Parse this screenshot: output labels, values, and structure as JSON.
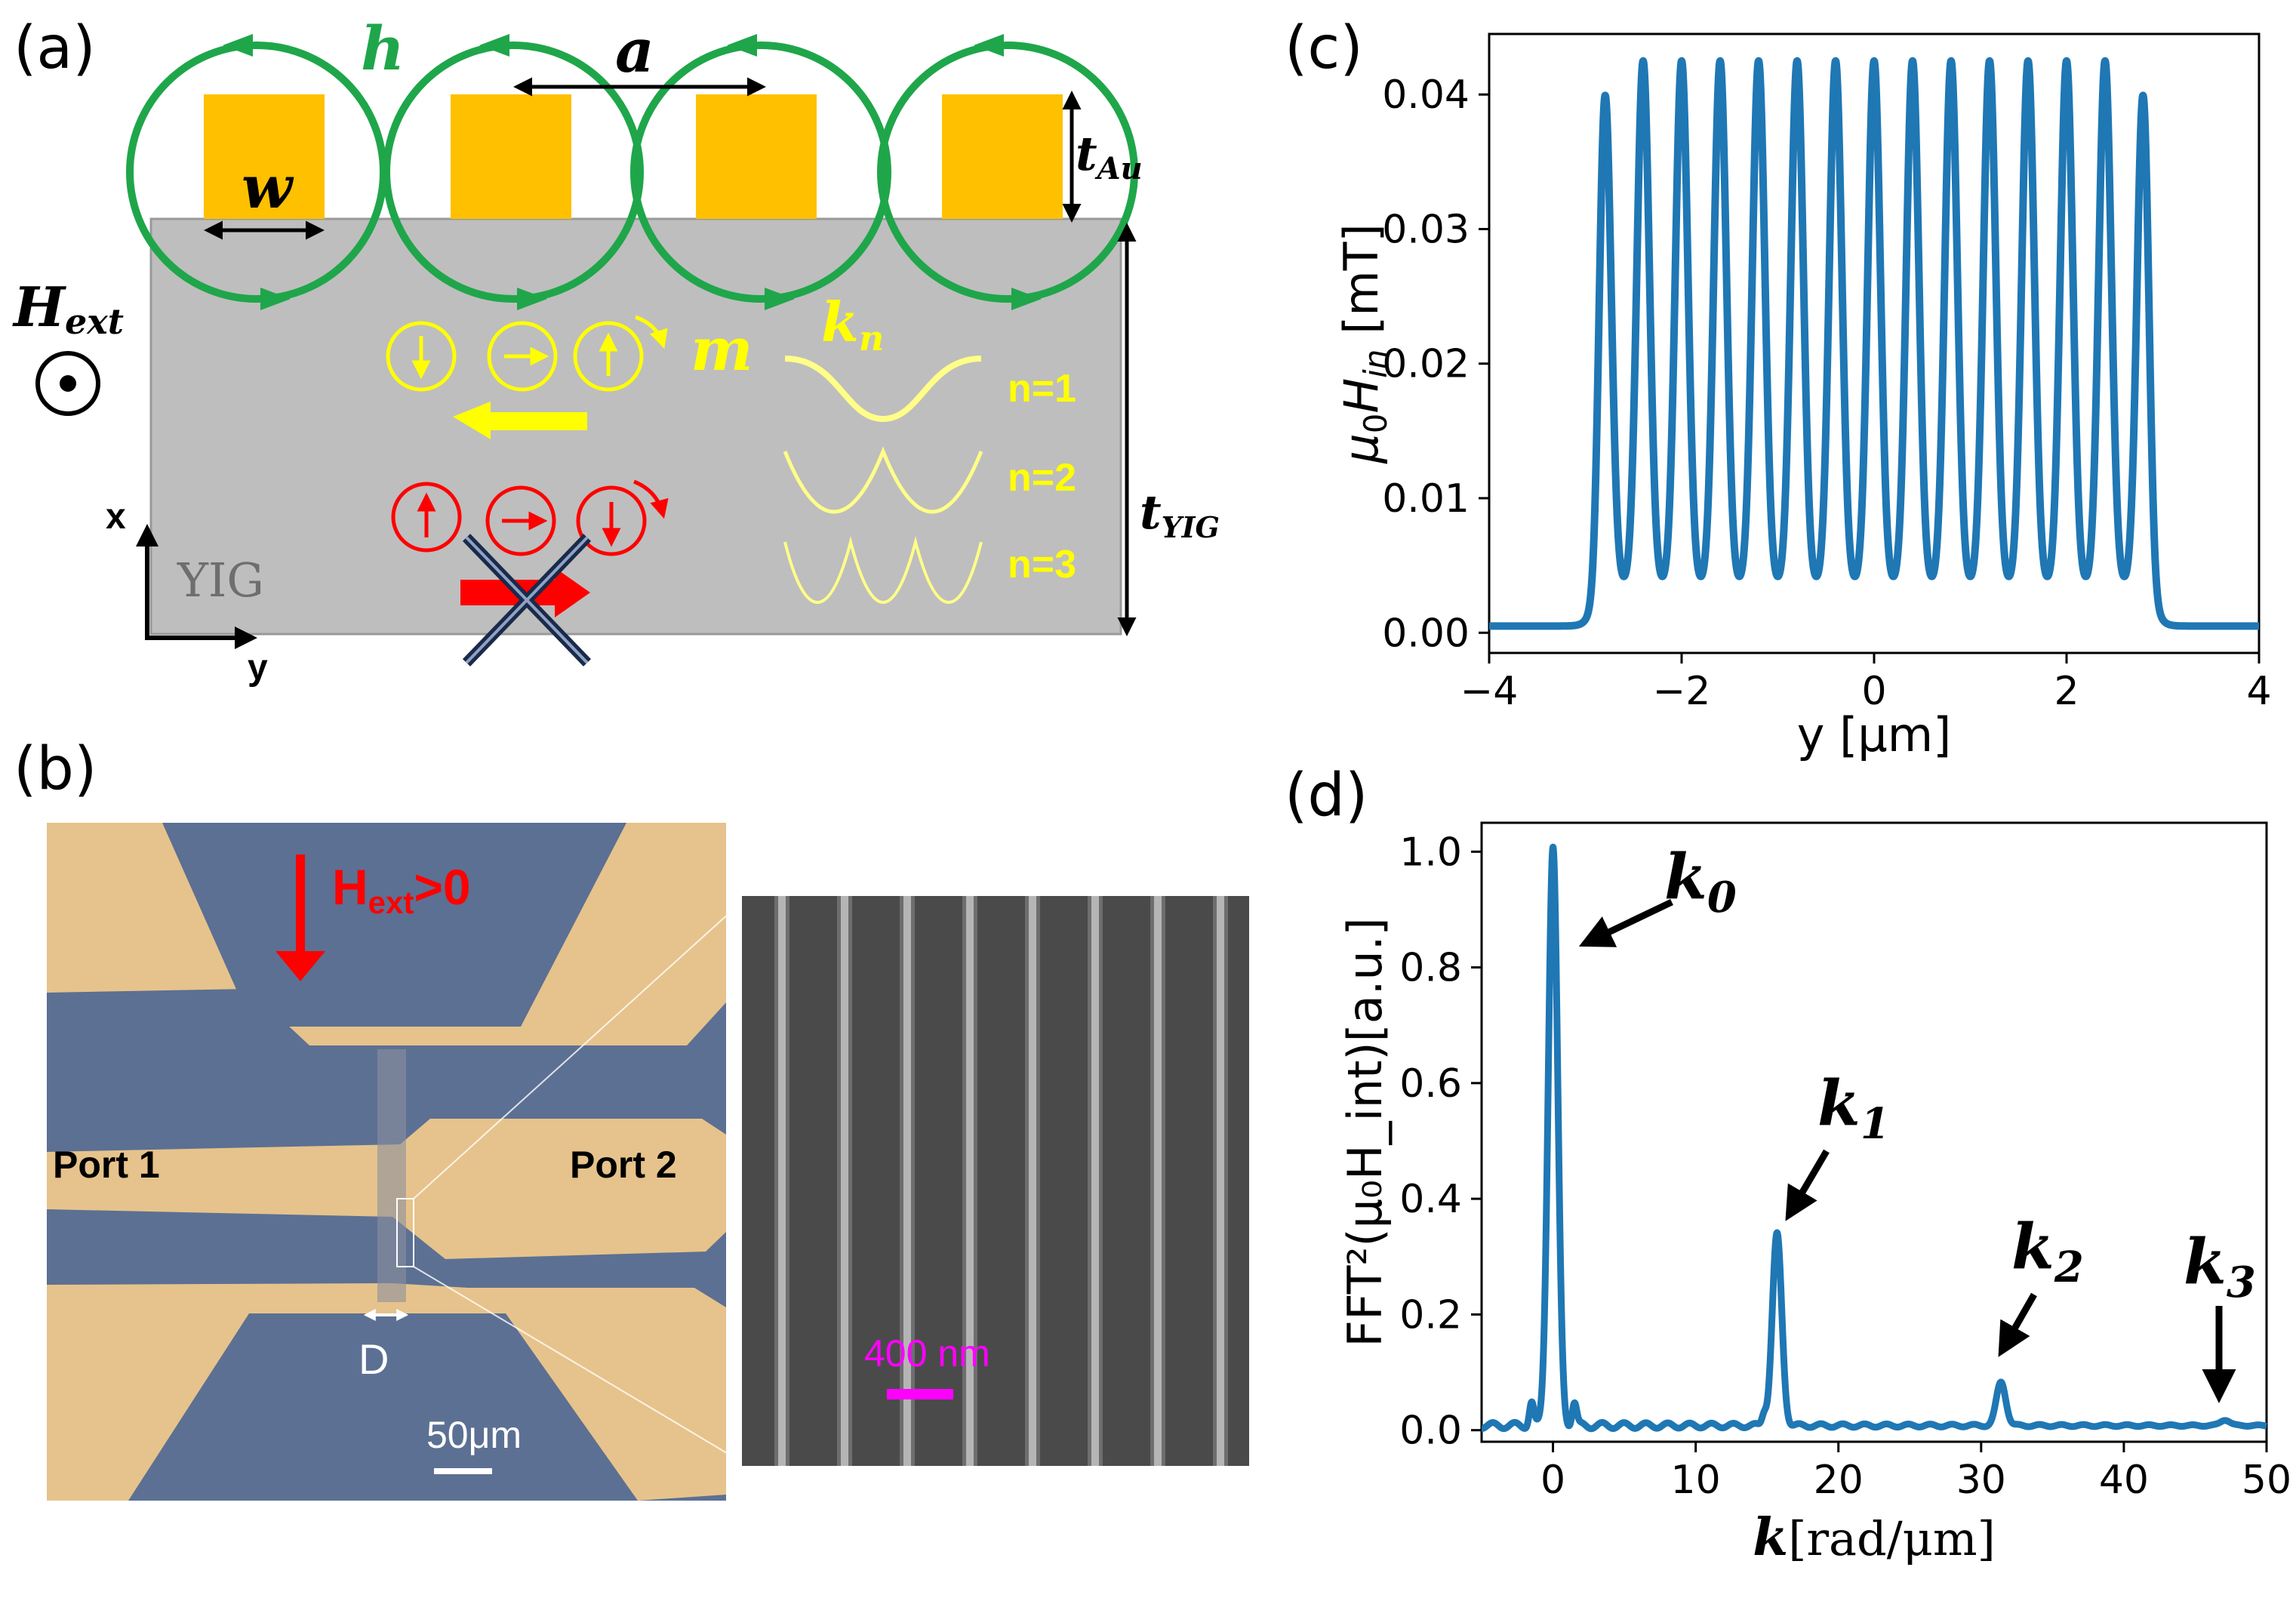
{
  "panels": {
    "a": {
      "label": "(a)",
      "field_h": "h",
      "period_a": "a",
      "width_w": "w",
      "thickness_au": "t",
      "thickness_au_sub": "Au",
      "thickness_yig": "t",
      "thickness_yig_sub": "YIG",
      "ext_field": "H",
      "ext_field_sub": "ext",
      "magnetization": "m",
      "wavevector": "k",
      "wavevector_sub": "n",
      "modes": [
        "n=1",
        "n=2",
        "n=3"
      ],
      "axis_x": "x",
      "axis_y": "y",
      "material": "YIG"
    },
    "b": {
      "label": "(b)",
      "field_main": "H",
      "field_sub": "ext",
      "field_rest": ">0",
      "port1": "Port 1",
      "port2": "Port 2",
      "gap": "D",
      "scalebar_optical": "50μm",
      "scalebar_sem": "400 nm"
    },
    "c": {
      "label": "(c)"
    },
    "d": {
      "label": "(d)",
      "peak_labels": [
        {
          "main": "k",
          "sub": "0"
        },
        {
          "main": "k",
          "sub": "1"
        },
        {
          "main": "k",
          "sub": "2"
        },
        {
          "main": "k",
          "sub": "3"
        }
      ]
    }
  },
  "colors": {
    "gold": "#FFC000",
    "green": "#1FA64A",
    "yig_gray": "#BEBEBE",
    "yellow": "#FFFF00",
    "red": "#FF0000",
    "plot_blue": "#1F77B4",
    "magenta": "#FF00FF"
  },
  "chart_data": [
    {
      "type": "line",
      "panel": "c",
      "title": "",
      "xlabel": "y [μm]",
      "ylabel_main": "μ",
      "ylabel_sub0": "0",
      "ylabel_H": "H",
      "ylabel_sub1": "in",
      "ylabel_unit": " [mT]",
      "xlim": [
        -4,
        4
      ],
      "ylim": [
        -0.0015,
        0.0445
      ],
      "xticks": [
        -4,
        -2,
        0,
        2,
        4
      ],
      "xtick_labels": [
        "−4",
        "−2",
        "0",
        "2",
        "4"
      ],
      "yticks": [
        0.0,
        0.01,
        0.02,
        0.03,
        0.04
      ],
      "ytick_labels": [
        "0.00",
        "0.01",
        "0.02",
        "0.03",
        "0.04"
      ],
      "peak_count": 15,
      "peak_value": 0.0425,
      "trough_value": 0.0035,
      "baseline_value": 0.0005,
      "peak_span": [
        -2.8,
        2.8
      ]
    },
    {
      "type": "line",
      "panel": "d",
      "title": "",
      "xlabel_main": "k",
      "xlabel_unit": "[rad/μm]",
      "ylabel": "FFT²(μ₀H_int)[a.u.]",
      "xlim": [
        -5,
        50
      ],
      "ylim": [
        -0.02,
        1.05
      ],
      "xticks": [
        0,
        10,
        20,
        30,
        40,
        50
      ],
      "xtick_labels": [
        "0",
        "10",
        "20",
        "30",
        "40",
        "50"
      ],
      "yticks": [
        0.0,
        0.2,
        0.4,
        0.6,
        0.8,
        1.0
      ],
      "ytick_labels": [
        "0.0",
        "0.2",
        "0.4",
        "0.6",
        "0.8",
        "1.0"
      ],
      "peaks": [
        {
          "k": 0.0,
          "value": 1.0
        },
        {
          "k": 15.7,
          "value": 0.33
        },
        {
          "k": 31.4,
          "value": 0.075
        },
        {
          "k": 47.1,
          "value": 0.01
        }
      ]
    }
  ]
}
